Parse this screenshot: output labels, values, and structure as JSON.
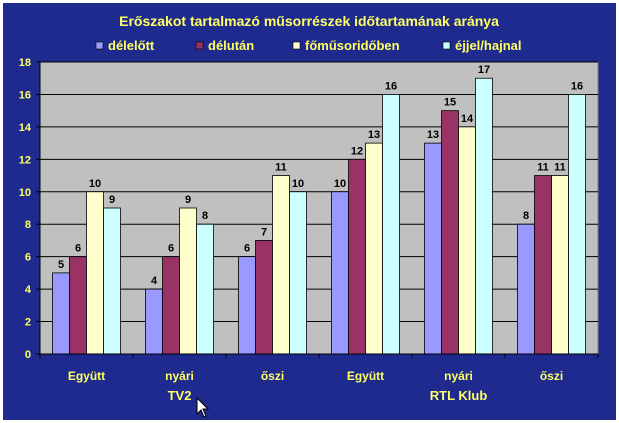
{
  "chart_data": {
    "type": "bar",
    "title": "Erőszakot tartalmazó műsorrészek időtartamának aránya",
    "categories": [
      "Együtt",
      "nyári",
      "őszi",
      "Együtt",
      "nyári",
      "őszi"
    ],
    "groups": [
      {
        "label": "TV2",
        "span": [
          0,
          2
        ]
      },
      {
        "label": "RTL Klub",
        "span": [
          3,
          5
        ]
      }
    ],
    "series": [
      {
        "name": "délelőtt",
        "color": "#9999ff",
        "values": [
          5,
          4,
          6,
          10,
          13,
          8
        ]
      },
      {
        "name": "délután",
        "color": "#993366",
        "values": [
          6,
          6,
          7,
          12,
          15,
          11
        ]
      },
      {
        "name": "főműsoridőben",
        "color": "#ffffcc",
        "values": [
          10,
          9,
          11,
          13,
          14,
          11
        ]
      },
      {
        "name": "éjjel/hajnal",
        "color": "#ccffff",
        "values": [
          9,
          8,
          10,
          16,
          17,
          16
        ]
      }
    ],
    "ylim": [
      0,
      18
    ],
    "yticks": [
      0,
      2,
      4,
      6,
      8,
      10,
      12,
      14,
      16,
      18
    ],
    "grid": true,
    "legend": "top",
    "colors": {
      "background": "#1e2a8e",
      "plot_area": "#c0c0c0",
      "text": "#ffff66",
      "value_labels": "#000000"
    }
  }
}
